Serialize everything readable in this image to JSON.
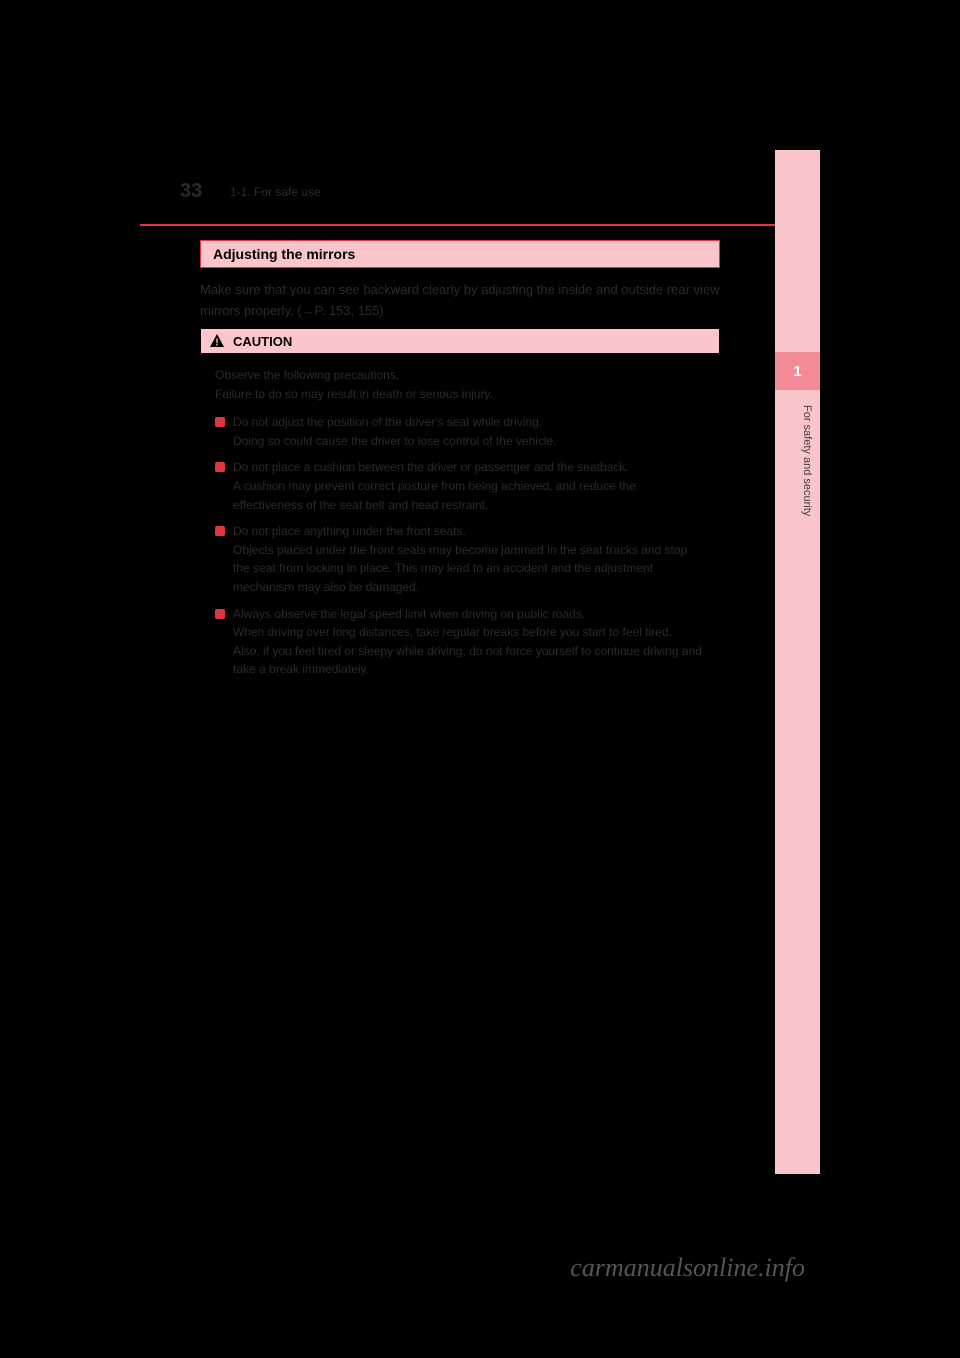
{
  "colors": {
    "background": "#000000",
    "accent_red": "#e73244",
    "light_pink": "#fac6cb",
    "mid_pink": "#f28b96",
    "body_text": "#2a2a2a",
    "sidebar_text": "#404040",
    "watermark": "#555555"
  },
  "page_number": "33",
  "breadcrumb": "1-1. For safe use",
  "section": {
    "title": "Adjusting the mirrors",
    "body": "Make sure that you can see backward clearly by adjusting the inside and outside rear view mirrors properly. (→P. 153, 155)"
  },
  "caution": {
    "label": "CAUTION",
    "intro": "Observe the following precautions.\nFailure to do so may result in death or serious injury.",
    "items": [
      "Do not adjust the position of the driver's seat while driving.\nDoing so could cause the driver to lose control of the vehicle.",
      "Do not place a cushion between the driver or passenger and the seatback.\nA cushion may prevent correct posture from being achieved, and reduce the effectiveness of the seat belt and head restraint.",
      "Do not place anything under the front seats.\nObjects placed under the front seats may become jammed in the seat tracks and stop the seat from locking in place. This may lead to an accident and the adjustment mechanism may also be damaged.",
      "Always observe the legal speed limit when driving on public roads.\nWhen driving over long distances, take regular breaks before you start to feel tired.\nAlso, if you feel tired or sleepy while driving, do not force yourself to continue driving and take a break immediately."
    ]
  },
  "sidebar": {
    "chapter": "1",
    "label": "For safety and security"
  },
  "watermark": "carmanualsonline.info"
}
